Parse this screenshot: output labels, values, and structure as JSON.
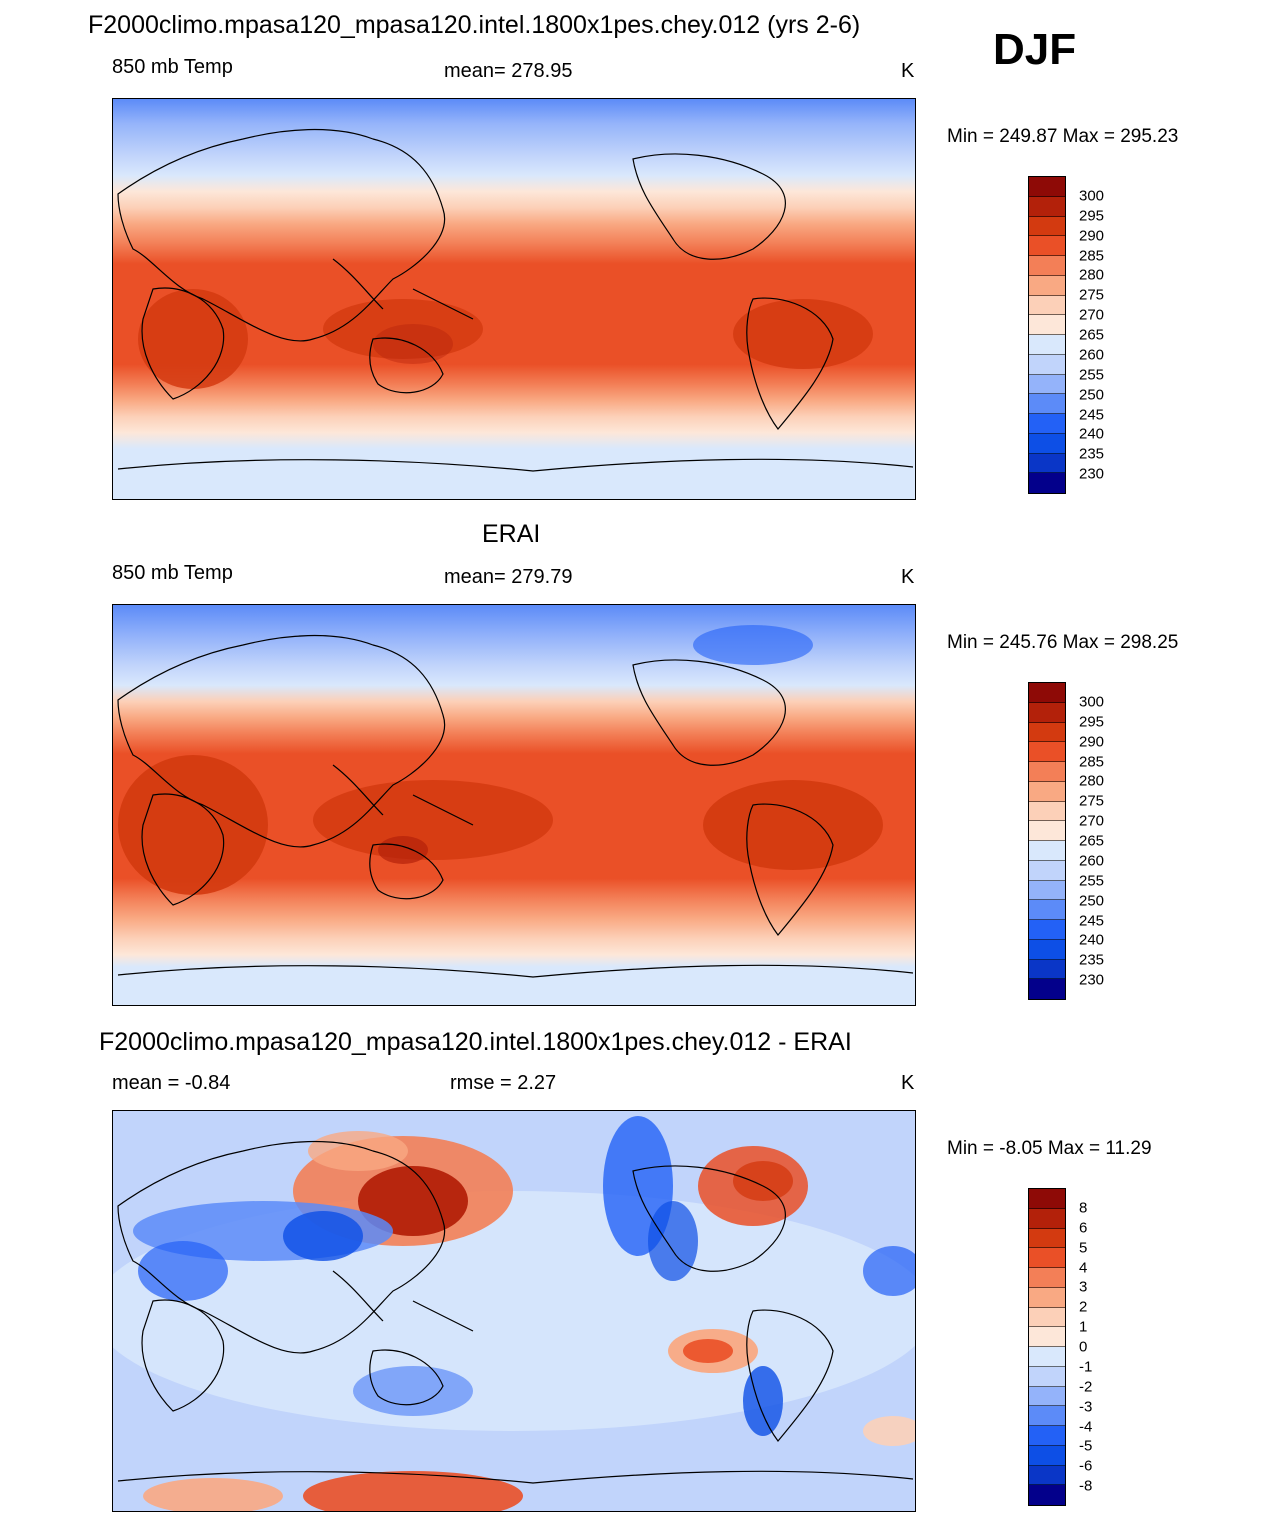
{
  "season": "DJF",
  "palette": [
    "#03008b",
    "#07219c",
    "#0a36c7",
    "#0d4fe6",
    "#2361f6",
    "#5c8bf8",
    "#94b3fa",
    "#c1d4fb",
    "#d9e8fc",
    "#fde7d9",
    "#fcd0b8",
    "#f9a983",
    "#f37f57",
    "#ea5027",
    "#d33a10",
    "#b3210a",
    "#8e0a06"
  ],
  "panels": [
    {
      "title": "F2000climo.mpasa120_mpasa120.intel.1800x1pes.chey.012 (yrs 2-6)",
      "left_label": "850 mb Temp",
      "center_label": "mean= 278.95",
      "units": "K",
      "minmax": "Min = 249.87 Max = 295.23",
      "colorbar_labels": [
        "300",
        "295",
        "290",
        "285",
        "280",
        "275",
        "270",
        "265",
        "260",
        "255",
        "250",
        "245",
        "240",
        "235",
        "230"
      ]
    },
    {
      "title": "ERAI",
      "left_label": "850 mb Temp",
      "center_label": "mean= 279.79",
      "units": "K",
      "minmax": "Min = 245.76 Max = 298.25",
      "colorbar_labels": [
        "300",
        "295",
        "290",
        "285",
        "280",
        "275",
        "270",
        "265",
        "260",
        "255",
        "250",
        "245",
        "240",
        "235",
        "230"
      ]
    },
    {
      "title": "F2000climo.mpasa120_mpasa120.intel.1800x1pes.chey.012 - ERAI",
      "left_label": "mean =  -0.84",
      "center_label": "rmse =   2.27",
      "units": "K",
      "minmax": "Min =  -8.05 Max =  11.29",
      "colorbar_labels": [
        "8",
        "6",
        "5",
        "4",
        "3",
        "2",
        "1",
        "0",
        "-1",
        "-2",
        "-3",
        "-4",
        "-5",
        "-6",
        "-8"
      ]
    }
  ]
}
